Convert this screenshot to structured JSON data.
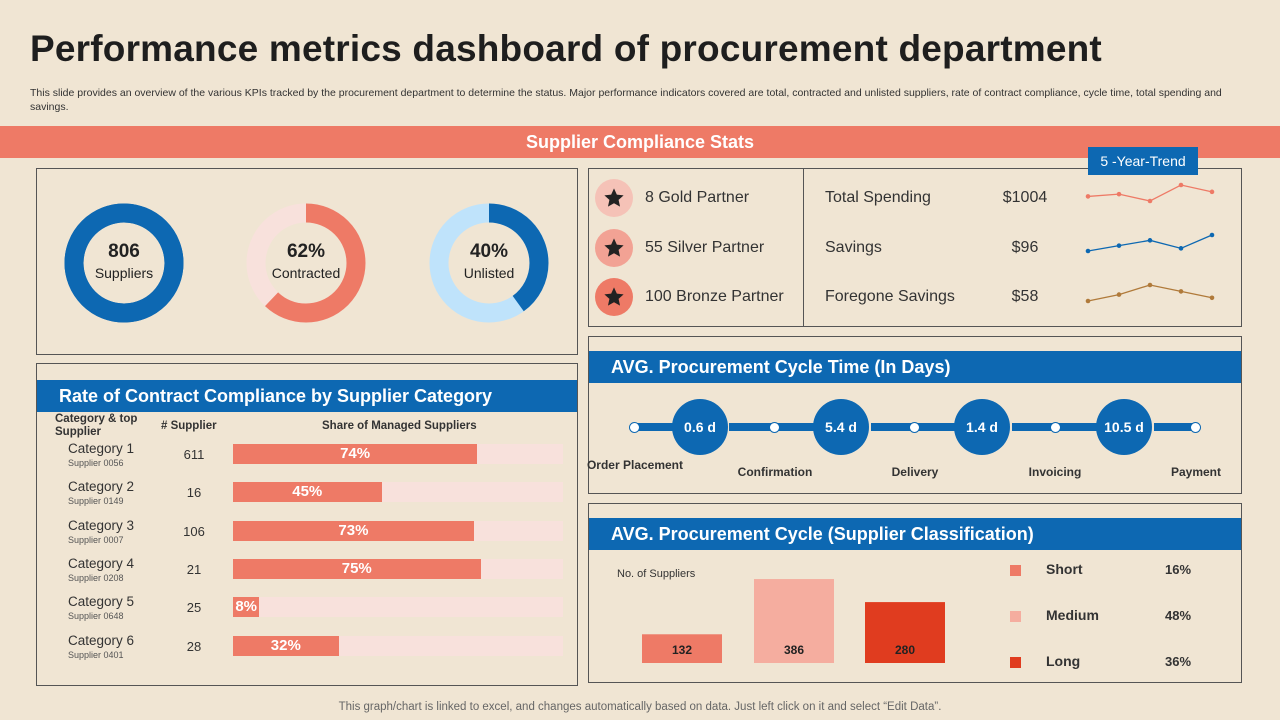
{
  "title": "Performance metrics dashboard of procurement department",
  "subtitle": "This slide provides an overview of the various KPIs tracked by the procurement department to determine the status. Major performance indicators covered are total, contracted and unlisted suppliers, rate of contract compliance, cycle time, total spending and savings.",
  "banner": "Supplier Compliance Stats",
  "colors": {
    "accent": "#ee7a66",
    "blue": "#0d68b2",
    "light_blue": "#bfe3fb",
    "light_pink": "#f8e1dc",
    "background": "#f0e5d3"
  },
  "donuts": [
    {
      "number": "806",
      "label": "Suppliers",
      "percent": 100,
      "color": "#0d68b2",
      "track": "#0d68b2"
    },
    {
      "number": "62%",
      "label": "Contracted",
      "percent": 62,
      "color": "#ee7a66",
      "track": "#f8e1dc"
    },
    {
      "number": "40%",
      "label": "Unlisted",
      "percent": 40,
      "color": "#0d68b2",
      "track": "#bfe3fb"
    }
  ],
  "partners": [
    {
      "label": "8 Gold Partner",
      "bg": "#f5c2b7"
    },
    {
      "label": "55 Silver Partner",
      "bg": "#f2a294"
    },
    {
      "label": "100 Bronze Partner",
      "bg": "#ee7a66"
    }
  ],
  "trend_badge": "5 -Year-Trend",
  "kpis": [
    {
      "label": "Total Spending",
      "value": "$1004",
      "trend": [
        3,
        4,
        1,
        8,
        5
      ],
      "color": "#ee7a66"
    },
    {
      "label": "Savings",
      "value": "$96",
      "trend": [
        1,
        3,
        5,
        2,
        7
      ],
      "color": "#0d68b2"
    },
    {
      "label": "Foregone Savings",
      "value": "$58",
      "trend": [
        2,
        4,
        7,
        5,
        3
      ],
      "color": "#b07a3a"
    }
  ],
  "compliance": {
    "heading": "Rate of Contract Compliance by Supplier Category",
    "col_category": "Category & top Supplier",
    "col_supplier": "# Supplier",
    "col_share": "Share of Managed Suppliers",
    "rows": [
      {
        "category": "Category  1",
        "supplier": "Supplier  0056",
        "count": "611",
        "share": 74,
        "share_label": "74%"
      },
      {
        "category": "Category  2",
        "supplier": "Supplier  0149",
        "count": "16",
        "share": 45,
        "share_label": "45%"
      },
      {
        "category": "Category  3",
        "supplier": "Supplier  0007",
        "count": "106",
        "share": 73,
        "share_label": "73%"
      },
      {
        "category": "Category  4",
        "supplier": "Supplier  0208",
        "count": "21",
        "share": 75,
        "share_label": "75%"
      },
      {
        "category": "Category  5",
        "supplier": "Supplier  0648",
        "count": "25",
        "share": 8,
        "share_label": "8%"
      },
      {
        "category": "Category  6",
        "supplier": "Supplier  0401",
        "count": "28",
        "share": 32,
        "share_label": "32%"
      }
    ]
  },
  "cycle_time": {
    "heading": "AVG. Procurement Cycle Time (In Days)",
    "values": [
      "0.6 d",
      "5.4 d",
      "1.4 d",
      "10.5 d"
    ],
    "stages": [
      "Order Placement",
      "Confirmation",
      "Delivery",
      "Invoicing",
      "Payment"
    ]
  },
  "classification": {
    "heading": "AVG. Procurement Cycle (Supplier Classification)",
    "ylabel": "No.  of Suppliers"
  },
  "chart_data": {
    "type": "bar",
    "title": "AVG. Procurement Cycle (Supplier Classification)",
    "ylabel": "No.  of Suppliers",
    "categories": [
      "Short",
      "Medium",
      "Long"
    ],
    "values": [
      132,
      386,
      280
    ],
    "colors": [
      "#ee7a66",
      "#f5ad9f",
      "#e03c1f"
    ],
    "percentages": [
      "16%",
      "48%",
      "36%"
    ],
    "legend": [
      {
        "label": "Short",
        "percent": "16%"
      },
      {
        "label": "Medium",
        "percent": "48%"
      },
      {
        "label": "Long",
        "percent": "36%"
      }
    ],
    "ylim": [
      0,
      400
    ]
  },
  "footer": "This graph/chart is linked to excel,  and changes automatically based on data. Just left click on it and select “Edit Data”."
}
